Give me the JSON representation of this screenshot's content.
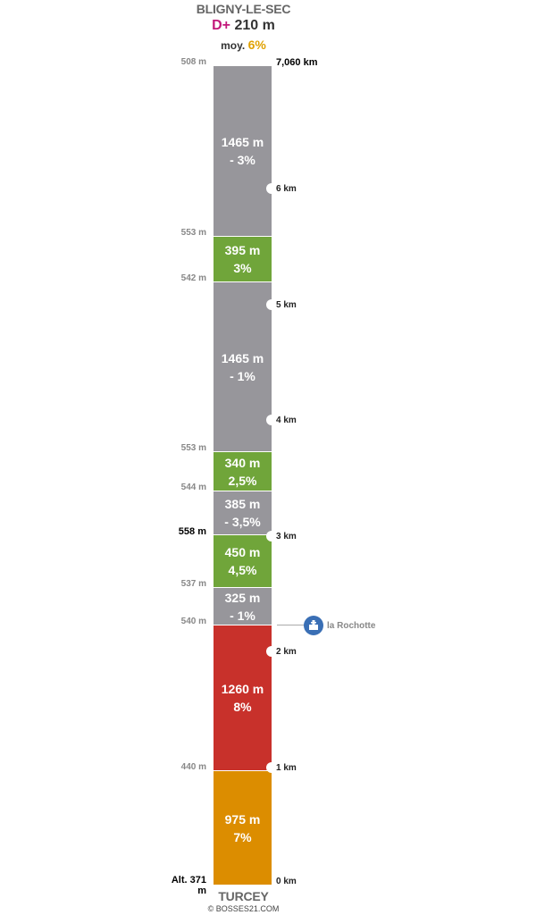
{
  "top_title": "BLIGNY-LE-SEC",
  "dplus": {
    "label": "D+",
    "value": "210 m"
  },
  "average": {
    "label": "moy.",
    "value": "6%"
  },
  "total_distance": "7,060 km",
  "bottom_title": "TURCEY",
  "credit": "© BOSSES21.COM",
  "altitudes": [
    {
      "text": "508 m",
      "strong": false
    },
    {
      "text": "553 m",
      "strong": false
    },
    {
      "text": "542 m",
      "strong": false
    },
    {
      "text": "553 m",
      "strong": false
    },
    {
      "text": "544 m",
      "strong": false
    },
    {
      "text": "558 m",
      "strong": true
    },
    {
      "text": "537 m",
      "strong": false
    },
    {
      "text": "540 m",
      "strong": false
    },
    {
      "text": "440 m",
      "strong": false
    },
    {
      "text": "Alt. 371 m",
      "strong": true
    }
  ],
  "segments": [
    {
      "length": "1465 m",
      "grade": "- 3%",
      "color": "#97969b"
    },
    {
      "length": "395 m",
      "grade": "3%",
      "color": "#70a53a"
    },
    {
      "length": "1465 m",
      "grade": "- 1%",
      "color": "#97969b"
    },
    {
      "length": "340 m",
      "grade": "2,5%",
      "color": "#70a53a"
    },
    {
      "length": "385 m",
      "grade": "- 3,5%",
      "color": "#97969b"
    },
    {
      "length": "450 m",
      "grade": "4,5%",
      "color": "#70a53a"
    },
    {
      "length": "325 m",
      "grade": "- 1%",
      "color": "#97969b"
    },
    {
      "length": "1260 m",
      "grade": "8%",
      "color": "#c8312b"
    },
    {
      "length": "975 m",
      "grade": "7%",
      "color": "#dc8d00"
    }
  ],
  "km_markers": [
    "6 km",
    "5 km",
    "4 km",
    "3 km",
    "2 km",
    "1 km",
    "0 km"
  ],
  "poi": {
    "name": "la Rochotte",
    "icon": "church-icon"
  }
}
